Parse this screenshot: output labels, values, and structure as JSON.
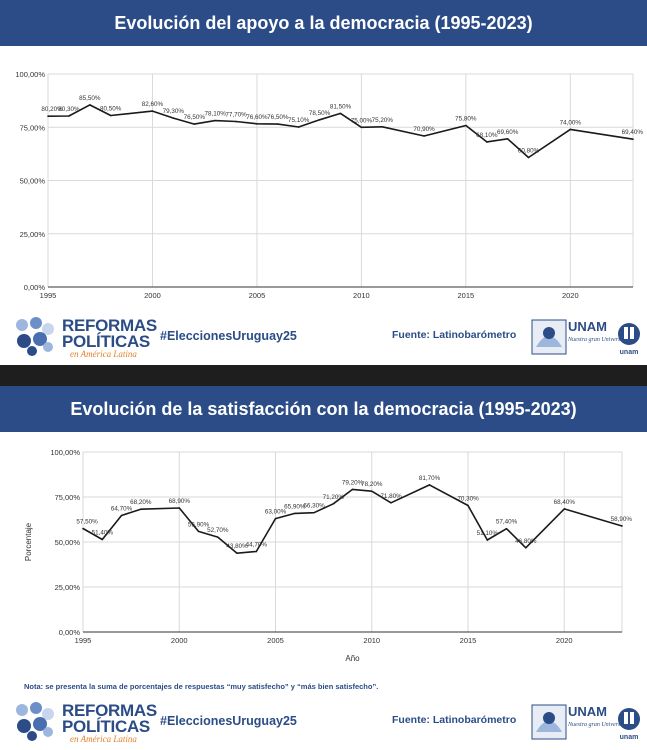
{
  "panels": [
    {
      "title": "Evolución del apoyo a la democracia (1995-2023)",
      "footer": {
        "hashtag": "#EleccionesUruguay25",
        "source": "Fuente: Latinobarómetro"
      }
    },
    {
      "title": "Evolución de la satisfacción con la democracia (1995-2023)",
      "note": "Nota: se presenta la suma de porcentajes de respuestas “muy satisfecho” y “más bien satisfecho”.",
      "footer": {
        "hashtag": "#EleccionesUruguay25",
        "source": "Fuente: Latinobarómetro"
      }
    }
  ],
  "logo": {
    "line1": "REFORMAS",
    "line2": "POLÍTICAS",
    "sub": "en América Latina"
  },
  "unam": {
    "text": "UNAM",
    "motto": "Nuestra gran Universidad",
    "seal": "unam"
  },
  "chart_data": [
    {
      "type": "line",
      "title": "Evolución del apoyo a la democracia (1995-2023)",
      "xlabel": "",
      "ylabel": "",
      "x": [
        1995,
        1996,
        1997,
        1998,
        2000,
        2001,
        2002,
        2003,
        2004,
        2005,
        2006,
        2007,
        2008,
        2009,
        2010,
        2011,
        2013,
        2015,
        2016,
        2017,
        2018,
        2020,
        2023
      ],
      "values": [
        80.2,
        80.3,
        85.5,
        80.5,
        82.6,
        79.3,
        76.5,
        78.1,
        77.7,
        76.6,
        76.5,
        75.1,
        78.5,
        81.5,
        75.0,
        75.2,
        70.9,
        75.8,
        68.1,
        69.6,
        60.8,
        74.0,
        69.4
      ],
      "labels": [
        "80,20%",
        "80,30%",
        "85,50%",
        "80,50%",
        "82,60%",
        "79,30%",
        "76,50%",
        "78,10%",
        "77,70%",
        "76,60%",
        "76,50%",
        "75,10%",
        "78,50%",
        "81,50%",
        "75,00%",
        "75,20%",
        "70,90%",
        "75,80%",
        "68,10%",
        "69,60%",
        "60,80%",
        "74,00%",
        "69,40%"
      ],
      "xlim": [
        1995,
        2023
      ],
      "ylim": [
        0,
        100
      ],
      "xticks": [
        "1995",
        "2000",
        "2005",
        "2010",
        "2015",
        "2020"
      ],
      "yticks": [
        "0,00%",
        "25,00%",
        "50,00%",
        "75,00%",
        "100,00%"
      ],
      "grid": true,
      "color": "#1a1a1a"
    },
    {
      "type": "line",
      "title": "Evolución de la satisfacción con la democracia (1995-2023)",
      "xlabel": "Año",
      "ylabel": "Porcentaje",
      "x": [
        1995,
        1996,
        1997,
        1998,
        2000,
        2001,
        2002,
        2003,
        2004,
        2005,
        2006,
        2007,
        2008,
        2009,
        2010,
        2011,
        2013,
        2015,
        2016,
        2017,
        2018,
        2020,
        2023
      ],
      "values": [
        57.5,
        51.4,
        64.7,
        68.2,
        68.9,
        55.9,
        52.7,
        43.8,
        44.7,
        63.0,
        65.9,
        66.3,
        71.2,
        79.2,
        78.2,
        71.8,
        81.7,
        70.3,
        51.1,
        57.4,
        46.8,
        68.4,
        58.9
      ],
      "labels": [
        "57,50%",
        "51,40%",
        "64,70%",
        "68,20%",
        "68,90%",
        "55,90%",
        "52,70%",
        "43,80%",
        "44,70%",
        "63,00%",
        "65,90%",
        "66,30%",
        "71,20%",
        "79,20%",
        "78,20%",
        "71,80%",
        "81,70%",
        "70,30%",
        "51,10%",
        "57,40%",
        "46,80%",
        "68,40%",
        "58,90%"
      ],
      "xlim": [
        1995,
        2023
      ],
      "ylim": [
        0,
        100
      ],
      "xticks": [
        "1995",
        "2000",
        "2005",
        "2010",
        "2015",
        "2020"
      ],
      "yticks": [
        "0,00%",
        "25,00%",
        "50,00%",
        "75,00%",
        "100,00%"
      ],
      "grid": true,
      "color": "#1a1a1a"
    }
  ]
}
